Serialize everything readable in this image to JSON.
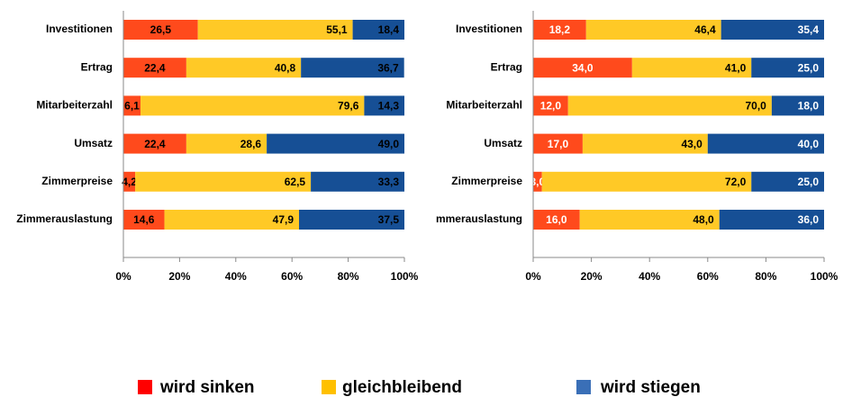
{
  "chart_data": [
    {
      "type": "stacked_bar_horizontal",
      "categories": [
        "Investitionen",
        "Ertrag",
        "Mitarbeiterzahl",
        "Umsatz",
        "Zimmerpreise",
        "Zimmerauslastung"
      ],
      "series": [
        {
          "name": "wird sinken",
          "color": "#ff4a1c",
          "values": [
            26.5,
            22.4,
            6.1,
            22.4,
            4.2,
            14.6
          ],
          "value_labels": [
            "26,5",
            "22,4",
            "6,1",
            "22,4",
            "4,2",
            "14,6"
          ]
        },
        {
          "name": "gleichbleibend",
          "color": "#ffc926",
          "values": [
            55.1,
            40.8,
            79.6,
            28.6,
            62.5,
            47.9
          ],
          "value_labels": [
            "55,1",
            "40,8",
            "79,6",
            "28,6",
            "62,5",
            "47,9"
          ]
        },
        {
          "name": "wird stiegen",
          "color": "#164f95",
          "values": [
            18.4,
            36.7,
            14.3,
            49.0,
            33.3,
            37.5
          ],
          "value_labels": [
            "18,4",
            "36,7",
            "14,3",
            "49,0",
            "33,3",
            "37,5"
          ]
        }
      ],
      "xlim": [
        0,
        100
      ],
      "xticks": [
        {
          "value": 0,
          "label": "0%"
        },
        {
          "value": 20,
          "label": "20%"
        },
        {
          "value": 40,
          "label": "40%"
        },
        {
          "value": 60,
          "label": "60%"
        },
        {
          "value": 80,
          "label": "80%"
        },
        {
          "value": 100,
          "label": "100%"
        }
      ]
    },
    {
      "type": "stacked_bar_horizontal",
      "categories": [
        "Investitionen",
        "Ertrag",
        "Mitarbeiterzahl",
        "Umsatz",
        "Zimmerpreise",
        "mmerauslastung"
      ],
      "series": [
        {
          "name": "wird sinken",
          "color": "#ff4a1c",
          "values": [
            18.2,
            34.0,
            12.0,
            17.0,
            3.0,
            16.0
          ],
          "value_labels": [
            "18,2",
            "34,0",
            "12,0",
            "17,0",
            "3,0",
            "16,0"
          ]
        },
        {
          "name": "gleichbleibend",
          "color": "#ffc926",
          "values": [
            46.4,
            41.0,
            70.0,
            43.0,
            72.0,
            48.0
          ],
          "value_labels": [
            "46,4",
            "41,0",
            "70,0",
            "43,0",
            "72,0",
            "48,0"
          ]
        },
        {
          "name": "wird stiegen",
          "color": "#164f95",
          "values": [
            35.4,
            25.0,
            18.0,
            40.0,
            25.0,
            36.0
          ],
          "value_labels": [
            "35,4",
            "25,0",
            "18,0",
            "40,0",
            "25,0",
            "36,0"
          ]
        }
      ],
      "xlim": [
        0,
        100
      ],
      "xticks": [
        {
          "value": 0,
          "label": "0%"
        },
        {
          "value": 20,
          "label": "20%"
        },
        {
          "value": 40,
          "label": "40%"
        },
        {
          "value": 60,
          "label": "60%"
        },
        {
          "value": 80,
          "label": "80%"
        },
        {
          "value": 100,
          "label": "100%"
        }
      ]
    }
  ],
  "legend": {
    "colors": [
      "#ff0000",
      "#ffc000",
      "#3a6fb7"
    ]
  }
}
